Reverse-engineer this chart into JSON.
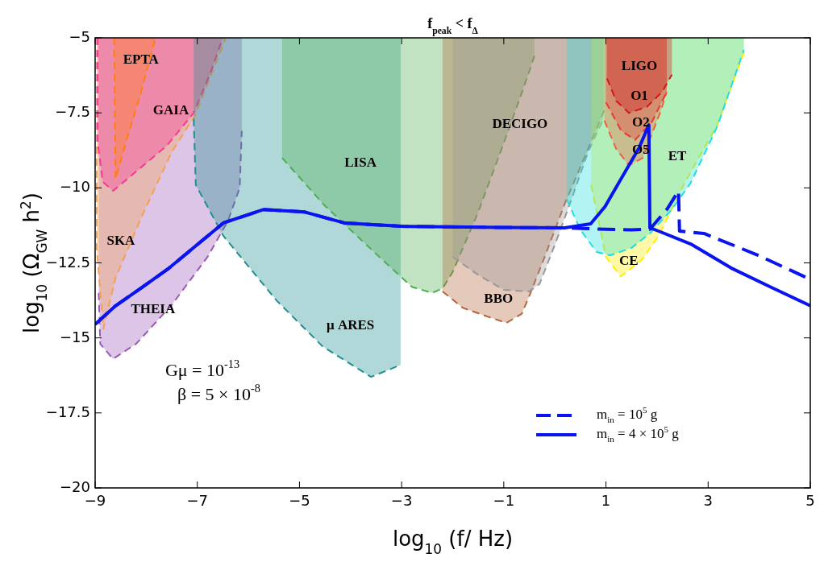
{
  "chart_data": {
    "type": "line",
    "title": "f$_{peak}$ < f$_{Δ}$",
    "xlabel": "log$_{10}$ (f/ Hz)",
    "ylabel": "log$_{10}$ (Ω$_{GW}$ h$^{2}$)",
    "xlim": [
      -9,
      5
    ],
    "ylim": [
      -20,
      -5
    ],
    "xticks": [
      -9,
      -7,
      -5,
      -3,
      -1,
      1,
      3,
      5
    ],
    "yticks": [
      -20,
      -17.5,
      -15,
      -12.5,
      -10,
      -7.5,
      -5
    ],
    "legend": "bottom right",
    "series": [
      {
        "type": "area",
        "name": "THEIA",
        "color": "#9b59b6",
        "line_style": "dashed",
        "x": [
          -8.93,
          -8.9,
          -8.65,
          -8.2,
          -7.5,
          -6.8,
          -6.4,
          -6.17,
          -6.13
        ],
        "values": [
          -13.5,
          -15.2,
          -15.7,
          -15.2,
          -13.9,
          -12.3,
          -11.1,
          -10,
          -8.1
        ]
      },
      {
        "type": "area",
        "name": "SKA",
        "color": "#f5a050",
        "line_style": "dashed",
        "x": [
          -8.97,
          -8.97,
          -8.84,
          -8.6,
          -8.1,
          -7.5,
          -7.05,
          -6.44
        ],
        "values": [
          -5,
          -12,
          -14.7,
          -13,
          -11,
          -8.8,
          -7.6,
          -5
        ]
      },
      {
        "type": "area",
        "name": "GAIA",
        "color": "#ff3399",
        "line_style": "dashed",
        "x": [
          -8.95,
          -8.95,
          -8.85,
          -8.65,
          -8.3,
          -7.6,
          -7.07,
          -6.75,
          -6.5
        ],
        "values": [
          -5,
          -8.5,
          -9.8,
          -10.1,
          -9.6,
          -8.6,
          -7.5,
          -6.2,
          -5
        ]
      },
      {
        "type": "area",
        "name": "EPTA",
        "color": "#ff7f0e",
        "line_style": "dashed",
        "x": [
          -8.63,
          -8.6,
          -8.4,
          -8.1,
          -7.82
        ],
        "values": [
          -5,
          -9.7,
          -8.5,
          -6.8,
          -5
        ]
      },
      {
        "type": "area",
        "name": "μ ARES",
        "color": "#1f8f8f",
        "line_style": "dashed",
        "x": [
          -7.07,
          -7.03,
          -6.49,
          -5.45,
          -4.55,
          -3.6,
          -3.02
        ],
        "values": [
          -7.7,
          -9.9,
          -11.6,
          -13.75,
          -15.28,
          -16.3,
          -15.9
        ]
      },
      {
        "type": "area",
        "name": "LISA",
        "color": "#4caf50",
        "line_style": "dashed",
        "x": [
          -5.34,
          -4.5,
          -3.5,
          -2.8,
          -2.4,
          -2.2,
          -2,
          -1.5,
          -1,
          -0.6,
          -0.4
        ],
        "values": [
          -9,
          -10.6,
          -12.2,
          -13.3,
          -13.5,
          -13.35,
          -12.8,
          -10.8,
          -8.5,
          -6.6,
          -5.6
        ]
      },
      {
        "type": "area",
        "name": "BBO",
        "color": "#b5653a",
        "line_style": "dashed",
        "x": [
          -2.2,
          -1.8,
          -1.3,
          -0.95,
          -0.65,
          -0.5,
          -0.2,
          0.2,
          0.6,
          0.97
        ],
        "values": [
          -13.45,
          -14,
          -14.3,
          -14.5,
          -14.2,
          -13.6,
          -12.3,
          -10.5,
          -8.9,
          -7.4
        ]
      },
      {
        "type": "area",
        "name": "DECIGO",
        "color": "#999999",
        "line_style": "dashed",
        "x": [
          -2,
          -1.5,
          -1,
          -0.5,
          -0.3,
          0,
          0.3,
          0.65,
          0.95
        ],
        "values": [
          -12.3,
          -12.9,
          -13.4,
          -13.45,
          -13.2,
          -11.9,
          -10.5,
          -8.8,
          -7.7
        ]
      },
      {
        "type": "area",
        "name": "CE",
        "color": "#ffee00",
        "line_style": "dashed",
        "x": [
          0.71,
          1,
          1.29,
          1.7,
          2.03,
          2.55,
          3.18,
          3.7
        ],
        "values": [
          -9.9,
          -12.3,
          -12.95,
          -12.4,
          -11.6,
          -9.8,
          -7.9,
          -5.5
        ]
      },
      {
        "type": "area",
        "name": "ET",
        "color": "#22dddd",
        "line_style": "dashed",
        "x": [
          0.23,
          0.5,
          0.82,
          1.08,
          1.5,
          1.87,
          2.3,
          2.66,
          3.18,
          3.7
        ],
        "values": [
          -10.37,
          -11.4,
          -12.14,
          -12.25,
          -12,
          -11.5,
          -10.7,
          -9.83,
          -7.95,
          -5.4
        ]
      },
      {
        "type": "area",
        "name": "O5",
        "color": "#f06040",
        "line_style": "dashed",
        "x": [
          0.97,
          1.2,
          1.45,
          1.72,
          2.08,
          2.19
        ],
        "values": [
          -7.76,
          -8.7,
          -9.25,
          -9,
          -7.4,
          -6.8
        ]
      },
      {
        "type": "area",
        "name": "O2",
        "color": "#e83838",
        "line_style": "dashed",
        "x": [
          1,
          1.3,
          1.57,
          1.9,
          2.19
        ],
        "values": [
          -7.15,
          -8.1,
          -8.4,
          -7.8,
          -6.8
        ]
      },
      {
        "type": "area",
        "name": "O1",
        "color": "#d01818",
        "line_style": "dashed",
        "x": [
          1.02,
          1.2,
          1.45,
          1.8,
          2.1,
          2.29
        ],
        "values": [
          -6.35,
          -7.1,
          -7.5,
          -7.3,
          -6.8,
          -6.23
        ]
      },
      {
        "name": "m$_{in}$ = 10$^{5}$ g",
        "color": "#0a14f0",
        "line_style": "dashed",
        "x": [
          -9,
          -8.6,
          -8.07,
          -7.55,
          -6.49,
          -5.7,
          -4.91,
          -4.12,
          -3,
          -2.07,
          -1,
          0.19,
          0.5,
          1,
          1.5,
          1.86,
          2,
          2.2,
          2.42,
          2.44,
          2.92,
          3.97,
          5
        ],
        "values": [
          -14.55,
          -13.93,
          -13.3,
          -12.67,
          -11.17,
          -10.72,
          -10.8,
          -11.17,
          -11.28,
          -11.3,
          -11.32,
          -11.33,
          -11.35,
          -11.38,
          -11.4,
          -11.38,
          -11.1,
          -10.7,
          -10.1,
          -11.44,
          -11.52,
          -12.24,
          -13.05
        ]
      },
      {
        "name": "m$_{in}$ = 4 × 10$^{5}$ g",
        "color": "#0a14f0",
        "line_style": "solid",
        "x": [
          -9,
          -8.6,
          -8.07,
          -7.55,
          -6.49,
          -5.7,
          -4.91,
          -4.12,
          -3,
          -2.07,
          -1,
          0.19,
          0.7,
          0.98,
          1.34,
          1.65,
          1.84,
          1.86,
          2.03,
          2.66,
          3.45,
          4.24,
          5
        ],
        "values": [
          -14.55,
          -13.93,
          -13.3,
          -12.67,
          -11.17,
          -10.72,
          -10.8,
          -11.17,
          -11.28,
          -11.3,
          -11.32,
          -11.33,
          -11.2,
          -10.63,
          -9.57,
          -8.66,
          -7.9,
          -11.33,
          -11.44,
          -11.87,
          -12.67,
          -13.32,
          -13.93
        ]
      }
    ],
    "annotations": [
      "LIGO",
      "Gμ = 10$^{-13}$",
      "β = 5 × 10$^{-8}$"
    ]
  }
}
